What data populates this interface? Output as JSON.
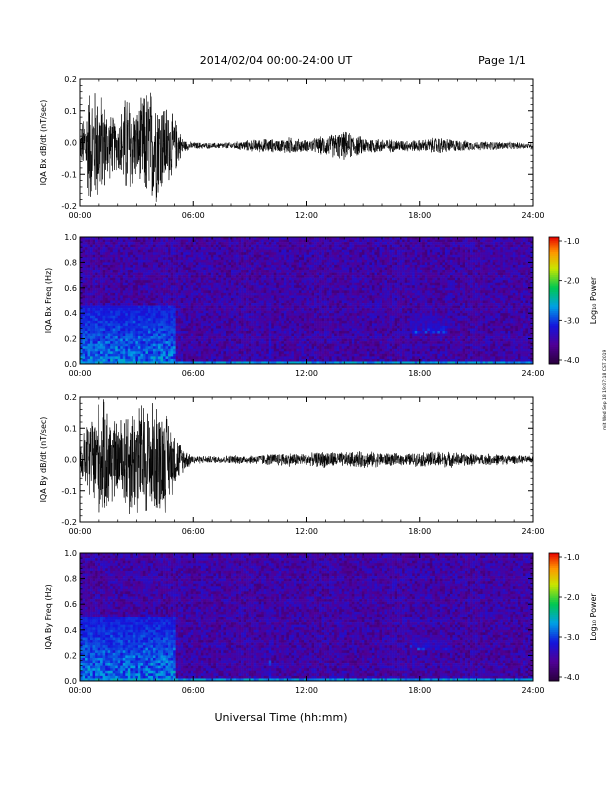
{
  "header": {
    "title": "2014/02/04  00:00-24:00 UT",
    "page": "Page 1/1"
  },
  "footer": {
    "xlabel": "Universal Time (hh:mm)"
  },
  "side_stamp": "mit Wed Sep 18 19:07:18 CST 2019",
  "colorbar": {
    "label": "Log₁₀ Power",
    "ticks": [
      "-1.0",
      "-2.0",
      "-3.0",
      "-4.0"
    ]
  },
  "chart_data": [
    {
      "type": "line",
      "title": "",
      "ylabel": "IQA Bx dB/dt (nT/sec)",
      "xlabel": "",
      "xlim": [
        "00:00",
        "24:00"
      ],
      "ylim": [
        -0.2,
        0.2
      ],
      "x_ticks": [
        "00:00",
        "06:00",
        "12:00",
        "18:00",
        "24:00"
      ],
      "y_ticks": [
        "0.2",
        "0.1",
        "0.0",
        "-0.1",
        "-0.2"
      ],
      "series": [
        {
          "x_hours": [
            0,
            0.5,
            1.0,
            1.5,
            2.0,
            2.5,
            3.0,
            3.5,
            4.0,
            4.5,
            5.0,
            5.5,
            6,
            7,
            8,
            9,
            10,
            10.5,
            11,
            12,
            13,
            14,
            15,
            16,
            17,
            18,
            19,
            20,
            21,
            22,
            23,
            24
          ],
          "envelope": [
            0.04,
            0.2,
            0.2,
            0.12,
            0.08,
            0.2,
            0.12,
            0.2,
            0.2,
            0.15,
            0.1,
            0.02,
            0.012,
            0.01,
            0.012,
            0.02,
            0.025,
            0.02,
            0.03,
            0.02,
            0.035,
            0.05,
            0.03,
            0.025,
            0.02,
            0.02,
            0.03,
            0.02,
            0.015,
            0.015,
            0.012,
            0.01
          ],
          "offset": -0.01
        }
      ]
    },
    {
      "type": "heatmap",
      "title": "",
      "ylabel": "IQA Bx Freq (Hz)",
      "xlim": [
        "00:00",
        "24:00"
      ],
      "ylim": [
        0.0,
        1.0
      ],
      "x_ticks": [
        "00:00",
        "06:00",
        "12:00",
        "18:00",
        "24:00"
      ],
      "y_ticks": [
        "1.0",
        "0.8",
        "0.6",
        "0.4",
        "0.2",
        "0.0"
      ],
      "color_scale": "log10 power, -4.0 to -1.0",
      "features": [
        {
          "x_hours": [
            0.0,
            5.0
          ],
          "freq": [
            0.0,
            0.45
          ],
          "level": -2.6
        },
        {
          "x_hours": [
            10.0,
            10.1
          ],
          "freq": [
            0.0,
            0.8
          ],
          "level": -3.0
        },
        {
          "x_hours": [
            17.5,
            19.5
          ],
          "freq": [
            0.25,
            0.4
          ],
          "level": -3.0
        }
      ]
    },
    {
      "type": "line",
      "title": "",
      "ylabel": "IQA By dB/dt (nT/sec)",
      "xlabel": "",
      "xlim": [
        "00:00",
        "24:00"
      ],
      "ylim": [
        -0.2,
        0.2
      ],
      "x_ticks": [
        "00:00",
        "06:00",
        "12:00",
        "18:00",
        "24:00"
      ],
      "y_ticks": [
        "0.2",
        "0.1",
        "0.0",
        "-0.1",
        "-0.2"
      ],
      "series": [
        {
          "x_hours": [
            0,
            0.5,
            1.0,
            1.5,
            2.0,
            2.5,
            3.0,
            3.5,
            4.0,
            4.5,
            5.0,
            5.5,
            6,
            7,
            8,
            9,
            10,
            11,
            12,
            13,
            14,
            15,
            16,
            17,
            18,
            19,
            20,
            21,
            22,
            23,
            24
          ],
          "envelope": [
            0.05,
            0.15,
            0.2,
            0.2,
            0.12,
            0.2,
            0.2,
            0.2,
            0.2,
            0.18,
            0.1,
            0.04,
            0.015,
            0.012,
            0.015,
            0.015,
            0.02,
            0.025,
            0.02,
            0.03,
            0.025,
            0.03,
            0.025,
            0.02,
            0.025,
            0.03,
            0.025,
            0.02,
            0.02,
            0.015,
            0.012
          ],
          "offset": 0.0
        }
      ]
    },
    {
      "type": "heatmap",
      "title": "",
      "ylabel": "IQA By Freq (Hz)",
      "xlim": [
        "00:00",
        "24:00"
      ],
      "ylim": [
        0.0,
        1.0
      ],
      "x_ticks": [
        "00:00",
        "06:00",
        "12:00",
        "18:00",
        "24:00"
      ],
      "y_ticks": [
        "1.0",
        "0.8",
        "0.6",
        "0.4",
        "0.2",
        "0.0"
      ],
      "color_scale": "log10 power, -4.0 to -1.0",
      "features": [
        {
          "x_hours": [
            0.0,
            5.0
          ],
          "freq": [
            0.0,
            0.5
          ],
          "level": -2.6
        },
        {
          "x_hours": [
            10.0,
            10.1
          ],
          "freq": [
            0.0,
            0.8
          ],
          "level": -3.0
        },
        {
          "x_hours": [
            17.5,
            19.5
          ],
          "freq": [
            0.25,
            0.35
          ],
          "level": -3.0
        }
      ]
    }
  ]
}
